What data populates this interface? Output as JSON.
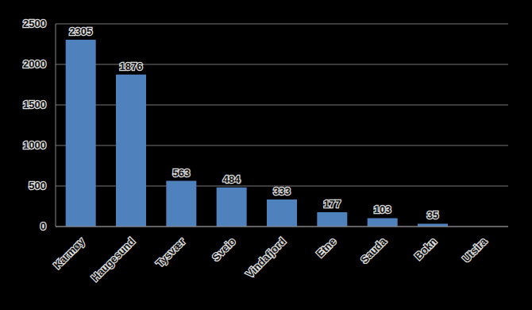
{
  "chart_data": {
    "type": "bar",
    "categories": [
      "Karmøy",
      "Haugesund",
      "Tysvær",
      "Sveio",
      "Vindafjord",
      "Etne",
      "Sauda",
      "Bokn",
      "Utsira"
    ],
    "values": [
      2305,
      1876,
      563,
      484,
      333,
      177,
      103,
      35,
      0
    ],
    "color": "#4f81bd",
    "ylim": [
      0,
      2500
    ],
    "yticks": [
      0,
      500,
      1000,
      1500,
      2000,
      2500
    ],
    "grid": true,
    "data_labels": true
  }
}
